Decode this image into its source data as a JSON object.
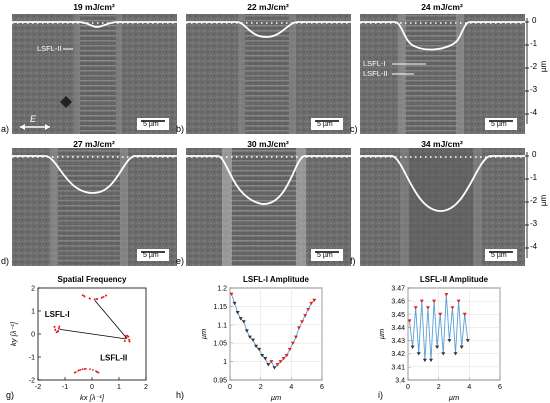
{
  "sem_panels": [
    {
      "letter": "a)",
      "title": "19 mJ/cm²",
      "scalebar": "5 µm",
      "annotations": [
        "LSFL-II"
      ],
      "efield": "E"
    },
    {
      "letter": "b)",
      "title": "22 mJ/cm²",
      "scalebar": "5 µm",
      "annotations": []
    },
    {
      "letter": "c)",
      "title": "24 mJ/cm²",
      "scalebar": "5 µm",
      "annotations": [
        "LSFL-I",
        "LSFL-II"
      ]
    },
    {
      "letter": "d)",
      "title": "27 mJ/cm²",
      "scalebar": "5 µm",
      "annotations": []
    },
    {
      "letter": "e)",
      "title": "30 mJ/cm²",
      "scalebar": "5 µm",
      "annotations": []
    },
    {
      "letter": "f)",
      "title": "34 mJ/cm²",
      "scalebar": "5 µm",
      "annotations": []
    }
  ],
  "depth_axis": {
    "ylabel": "µm",
    "ticks": [
      "0",
      "-1",
      "-2",
      "-3",
      "-4"
    ]
  },
  "chart_data": [
    {
      "type": "scatter",
      "panel": "g)",
      "title": "Spatial Frequency",
      "xlabel": "kx [λ⁻¹]",
      "ylabel": "ky [λ⁻¹]",
      "xlim": [
        -2,
        2
      ],
      "ylim": [
        -2,
        2
      ],
      "xticks": [
        "-2",
        "-1",
        "0",
        "1",
        "2"
      ],
      "yticks": [
        "2",
        "1",
        "0",
        "-1",
        "-2"
      ],
      "annotations": [
        "LSFL-I",
        "LSFL-II"
      ],
      "clusters": [
        {
          "x": 0.1,
          "y": 1.6
        },
        {
          "x": -0.2,
          "y": -1.6
        },
        {
          "x": -1.3,
          "y": 0.2
        },
        {
          "x": 1.3,
          "y": -0.2
        }
      ]
    },
    {
      "type": "line",
      "panel": "h)",
      "title": "LSFL-I Amplitude",
      "xlabel": "µm",
      "ylabel": "µm",
      "xlim": [
        0,
        6
      ],
      "ylim": [
        0.95,
        1.25
      ],
      "xticks": [
        "0",
        "2",
        "4",
        "6"
      ],
      "yticks": [
        "1.2",
        "1.15",
        "1.1",
        "1.05",
        "1",
        "0.95"
      ],
      "x": [
        0.1,
        0.3,
        0.5,
        0.7,
        0.9,
        1.1,
        1.3,
        1.5,
        1.7,
        1.9,
        2.1,
        2.3,
        2.5,
        2.7,
        2.9,
        3.1,
        3.3,
        3.5,
        3.7,
        3.9,
        4.1,
        4.3,
        4.5,
        4.7,
        4.9,
        5.1,
        5.3,
        5.5
      ],
      "series": [
        {
          "values": [
            1.23,
            1.2,
            1.17,
            1.15,
            1.14,
            1.11,
            1.09,
            1.08,
            1.06,
            1.05,
            1.03,
            1.02,
            1.0,
            1.01,
            0.99,
            1.0,
            1.01,
            1.02,
            1.03,
            1.05,
            1.07,
            1.09,
            1.12,
            1.14,
            1.16,
            1.18,
            1.2,
            1.21
          ]
        }
      ]
    },
    {
      "type": "line",
      "panel": "i)",
      "title": "LSFL-II Amplitude",
      "xlabel": "µm",
      "ylabel": "µm",
      "xlim": [
        0,
        6
      ],
      "ylim": [
        3.4,
        3.47
      ],
      "xticks": [
        "0",
        "2",
        "4",
        "6"
      ],
      "yticks": [
        "3.47",
        "3.46",
        "3.45",
        "3.44",
        "3.43",
        "3.42",
        "3.41",
        "3.4"
      ],
      "x": [
        0.1,
        0.3,
        0.5,
        0.7,
        0.9,
        1.1,
        1.3,
        1.5,
        1.7,
        1.9,
        2.1,
        2.3,
        2.5,
        2.7,
        2.9,
        3.1,
        3.3,
        3.5,
        3.7,
        3.9
      ],
      "series": [
        {
          "values": [
            3.445,
            3.425,
            3.455,
            3.42,
            3.46,
            3.415,
            3.455,
            3.415,
            3.46,
            3.425,
            3.45,
            3.42,
            3.465,
            3.43,
            3.455,
            3.42,
            3.46,
            3.425,
            3.45,
            3.43
          ]
        }
      ]
    }
  ]
}
